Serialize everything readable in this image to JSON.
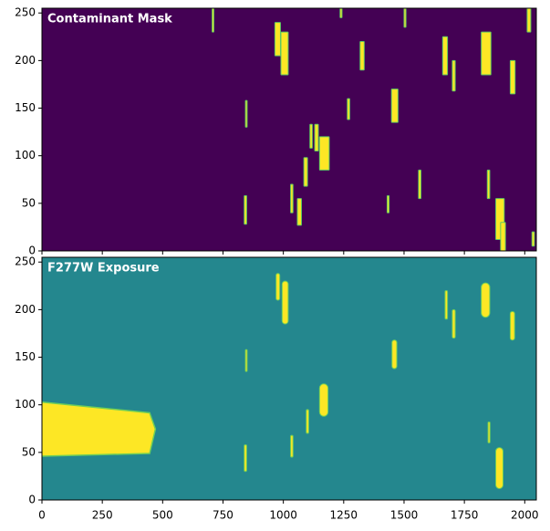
{
  "chart_data": [
    {
      "type": "image",
      "title": "Contaminant Mask",
      "background": "#440154",
      "color": "#fde725",
      "edge_color": "#5ec962",
      "xlim": [
        0,
        2048
      ],
      "ylim": [
        0,
        255
      ],
      "xticks": [
        0,
        250,
        500,
        750,
        1000,
        1250,
        1500,
        1750,
        2000
      ],
      "yticks": [
        0,
        50,
        100,
        150,
        200,
        250
      ],
      "regions": [
        {
          "x": [
            705,
            712
          ],
          "y": [
            230,
            256
          ]
        },
        {
          "x": [
            838,
            848
          ],
          "y": [
            28,
            58
          ]
        },
        {
          "x": [
            843,
            850
          ],
          "y": [
            130,
            158
          ]
        },
        {
          "x": [
            965,
            988
          ],
          "y": [
            205,
            240
          ]
        },
        {
          "x": [
            990,
            1020
          ],
          "y": [
            185,
            230
          ]
        },
        {
          "x": [
            1030,
            1040
          ],
          "y": [
            40,
            70
          ]
        },
        {
          "x": [
            1058,
            1075
          ],
          "y": [
            27,
            55
          ]
        },
        {
          "x": [
            1085,
            1100
          ],
          "y": [
            68,
            98
          ]
        },
        {
          "x": [
            1110,
            1120
          ],
          "y": [
            108,
            133
          ]
        },
        {
          "x": [
            1130,
            1145
          ],
          "y": [
            105,
            133
          ]
        },
        {
          "x": [
            1150,
            1190
          ],
          "y": [
            85,
            120
          ]
        },
        {
          "x": [
            1235,
            1243
          ],
          "y": [
            245,
            256
          ]
        },
        {
          "x": [
            1265,
            1275
          ],
          "y": [
            138,
            160
          ]
        },
        {
          "x": [
            1318,
            1335
          ],
          "y": [
            190,
            220
          ]
        },
        {
          "x": [
            1430,
            1438
          ],
          "y": [
            40,
            58
          ]
        },
        {
          "x": [
            1448,
            1475
          ],
          "y": [
            135,
            170
          ]
        },
        {
          "x": [
            1500,
            1508
          ],
          "y": [
            235,
            256
          ]
        },
        {
          "x": [
            1560,
            1570
          ],
          "y": [
            55,
            85
          ]
        },
        {
          "x": [
            1660,
            1680
          ],
          "y": [
            185,
            225
          ]
        },
        {
          "x": [
            1700,
            1712
          ],
          "y": [
            168,
            200
          ]
        },
        {
          "x": [
            1820,
            1860
          ],
          "y": [
            185,
            230
          ]
        },
        {
          "x": [
            1845,
            1855
          ],
          "y": [
            55,
            85
          ]
        },
        {
          "x": [
            1880,
            1915
          ],
          "y": [
            12,
            55
          ]
        },
        {
          "x": [
            1900,
            1920
          ],
          "y": [
            0,
            30
          ]
        },
        {
          "x": [
            1940,
            1960
          ],
          "y": [
            165,
            200
          ]
        },
        {
          "x": [
            2010,
            2025
          ],
          "y": [
            230,
            256
          ]
        },
        {
          "x": [
            2030,
            2040
          ],
          "y": [
            5,
            20
          ]
        }
      ]
    },
    {
      "type": "image",
      "title": "F277W Exposure",
      "background": "#24878e",
      "color": "#fde725",
      "edge_color": "#6ece58",
      "xlim": [
        0,
        2048
      ],
      "ylim": [
        0,
        255
      ],
      "xticks": [
        0,
        250,
        500,
        750,
        1000,
        1250,
        1500,
        1750,
        2000
      ],
      "yticks": [
        0,
        50,
        100,
        150,
        200,
        250
      ],
      "slab": {
        "x": [
          0,
          470
        ],
        "y": [
          46,
          103
        ]
      },
      "regions": [
        {
          "x": [
            838,
            848
          ],
          "y": [
            30,
            58
          ]
        },
        {
          "x": [
            843,
            850
          ],
          "y": [
            135,
            158
          ]
        },
        {
          "x": [
            970,
            985
          ],
          "y": [
            210,
            238
          ]
        },
        {
          "x": [
            995,
            1020
          ],
          "y": [
            185,
            230
          ]
        },
        {
          "x": [
            1030,
            1040
          ],
          "y": [
            45,
            68
          ]
        },
        {
          "x": [
            1095,
            1105
          ],
          "y": [
            70,
            95
          ]
        },
        {
          "x": [
            1150,
            1185
          ],
          "y": [
            88,
            122
          ]
        },
        {
          "x": [
            1450,
            1470
          ],
          "y": [
            138,
            168
          ]
        },
        {
          "x": [
            1670,
            1680
          ],
          "y": [
            190,
            220
          ]
        },
        {
          "x": [
            1700,
            1712
          ],
          "y": [
            170,
            200
          ]
        },
        {
          "x": [
            1820,
            1855
          ],
          "y": [
            192,
            228
          ]
        },
        {
          "x": [
            1880,
            1910
          ],
          "y": [
            12,
            55
          ]
        },
        {
          "x": [
            1940,
            1958
          ],
          "y": [
            168,
            198
          ]
        },
        {
          "x": [
            1848,
            1856
          ],
          "y": [
            60,
            82
          ]
        }
      ]
    }
  ]
}
